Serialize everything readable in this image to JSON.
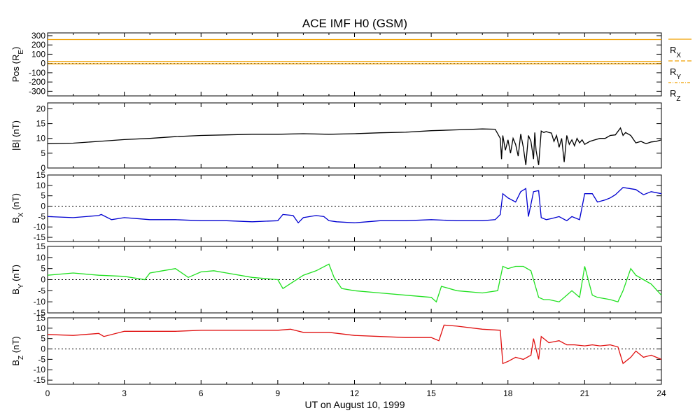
{
  "chart_data": {
    "type": "line",
    "title": "ACE IMF H0 (GSM)",
    "xlabel": "UT on August 10, 1999",
    "xlim": [
      0,
      24
    ],
    "xticks": [
      0,
      3,
      6,
      9,
      12,
      15,
      18,
      21,
      24
    ],
    "panels": [
      {
        "id": "pos",
        "ylabel_main": "Pos (R",
        "ylabel_sub": "E",
        "ylabel_end": ")",
        "ylim": [
          -350,
          330
        ],
        "yticks": [
          300,
          200,
          100,
          0,
          -100,
          -200,
          -300
        ],
        "zero_line": true,
        "legend": [
          {
            "main": "R",
            "sub": "X"
          },
          {
            "main": "R",
            "sub": "Y"
          },
          {
            "main": "R",
            "sub": "Z"
          }
        ],
        "series": [
          {
            "name": "R_X",
            "color": "#f0a000",
            "x": [
              0,
              24
            ],
            "y": [
              258,
              258
            ]
          },
          {
            "name": "R_Y",
            "color": "#f0a000",
            "x": [
              0,
              24
            ],
            "y": [
              22,
              22
            ]
          },
          {
            "name": "R_Z",
            "color": "#f0a000",
            "x": [
              0,
              24
            ],
            "y": [
              -4,
              -4
            ]
          }
        ]
      },
      {
        "id": "bt",
        "ylabel_main": "|B| (nT)",
        "ylabel_sub": "",
        "ylabel_end": "",
        "ylim": [
          0,
          22
        ],
        "yticks": [
          20,
          15,
          10,
          5,
          0
        ],
        "zero_line": false,
        "series": [
          {
            "name": "|B|",
            "color": "#000000",
            "x": [
              0,
              1,
              2,
              3,
              4,
              5,
              6,
              7,
              8,
              9,
              10,
              11,
              12,
              13,
              14,
              15,
              16,
              17,
              17.5,
              17.7,
              17.75,
              17.8,
              17.9,
              18.0,
              18.1,
              18.2,
              18.3,
              18.4,
              18.5,
              18.6,
              18.7,
              18.8,
              18.9,
              19.0,
              19.05,
              19.1,
              19.2,
              19.3,
              19.4,
              19.5,
              19.6,
              19.7,
              19.8,
              19.9,
              20.0,
              20.1,
              20.2,
              20.3,
              20.4,
              20.5,
              20.6,
              20.7,
              20.8,
              20.9,
              21.0,
              21.2,
              21.4,
              21.6,
              21.8,
              22.0,
              22.2,
              22.4,
              22.5,
              22.6,
              22.8,
              23.0,
              23.2,
              23.4,
              23.6,
              23.8,
              24.0
            ],
            "y": [
              8.2,
              8.4,
              9.0,
              9.6,
              10.0,
              10.6,
              11.0,
              11.2,
              11.4,
              11.4,
              11.6,
              11.4,
              11.6,
              11.9,
              12.1,
              12.6,
              12.9,
              13.2,
              13.1,
              10.0,
              3.0,
              11.0,
              6.0,
              9.5,
              5.0,
              10.0,
              8.0,
              4.0,
              11.5,
              7.0,
              1.0,
              11.0,
              9.0,
              3.0,
              12.0,
              6.0,
              1.0,
              12.5,
              12.0,
              12.3,
              12.0,
              11.8,
              9.0,
              11.0,
              7.0,
              10.0,
              2.0,
              11.0,
              8.0,
              9.5,
              7.5,
              10.0,
              8.5,
              9.5,
              8.0,
              9.0,
              9.5,
              10.0,
              10.0,
              11.0,
              11.2,
              13.5,
              11.0,
              12.0,
              11.0,
              8.5,
              9.0,
              8.2,
              8.8,
              9.0,
              9.5
            ]
          }
        ]
      },
      {
        "id": "bx",
        "ylabel_main": "B",
        "ylabel_sub": "X",
        "ylabel_end": " (nT)",
        "ylim": [
          -17,
          15
        ],
        "yticks": [
          15,
          10,
          5,
          0,
          -5,
          -10,
          -15
        ],
        "zero_line": true,
        "series": [
          {
            "name": "B_X",
            "color": "#0000d0",
            "x": [
              0,
              1,
              2,
              2.1,
              2.5,
              3,
              3.5,
              4,
              5,
              6,
              7,
              8,
              9,
              9.2,
              9.6,
              9.8,
              10,
              10.5,
              10.8,
              11,
              11.3,
              12,
              13,
              14,
              15,
              16,
              17,
              17.5,
              17.7,
              17.8,
              18.0,
              18.3,
              18.5,
              18.7,
              18.8,
              19.0,
              19.2,
              19.3,
              19.5,
              19.7,
              20.0,
              20.3,
              20.5,
              20.8,
              21.0,
              21.3,
              21.5,
              21.8,
              22.0,
              22.2,
              22.5,
              23.0,
              23.3,
              23.6,
              24.0
            ],
            "y": [
              -5,
              -5.5,
              -4.5,
              -4.0,
              -6.5,
              -5.5,
              -6.0,
              -6.5,
              -6.5,
              -7.0,
              -7.0,
              -7.5,
              -7.0,
              -4.0,
              -4.5,
              -8.0,
              -5.5,
              -4.5,
              -5.0,
              -7.0,
              -7.5,
              -8.0,
              -7.0,
              -7.0,
              -6.5,
              -7.0,
              -7.0,
              -6.5,
              -4.0,
              6.0,
              4.0,
              2.0,
              7.0,
              8.5,
              -5.0,
              7.0,
              7.5,
              -5.5,
              -6.5,
              -6.0,
              -5.0,
              -7.0,
              -5.0,
              -6.5,
              6.0,
              6.0,
              2.0,
              3.0,
              4.0,
              5.5,
              9.0,
              8.0,
              5.5,
              7.0,
              6.0
            ]
          }
        ]
      },
      {
        "id": "by",
        "ylabel_main": "B",
        "ylabel_sub": "Y",
        "ylabel_end": " (nT)",
        "ylim": [
          -15,
          15
        ],
        "yticks": [
          15,
          10,
          5,
          0,
          -5,
          -10,
          -15
        ],
        "zero_line": true,
        "series": [
          {
            "name": "B_Y",
            "color": "#20e020",
            "x": [
              0,
              1,
              2,
              3,
              3.8,
              4,
              4.5,
              5,
              5.5,
              6,
              6.5,
              7,
              8,
              9,
              9.2,
              9.6,
              10,
              10.5,
              11,
              11.2,
              11.5,
              12,
              13,
              14,
              15,
              15.2,
              15.4,
              16,
              17,
              17.6,
              17.8,
              18.0,
              18.3,
              18.6,
              18.9,
              19.2,
              19.4,
              19.6,
              20.0,
              20.3,
              20.5,
              20.8,
              21.0,
              21.3,
              21.5,
              22.0,
              22.3,
              22.5,
              22.8,
              23.0,
              23.3,
              23.6,
              24.0
            ],
            "y": [
              2,
              3,
              2,
              1.5,
              0,
              3,
              4,
              5,
              1,
              3.5,
              4,
              3,
              1,
              0,
              -4,
              -1,
              2,
              4,
              7,
              1,
              -4,
              -5,
              -6,
              -7,
              -8,
              -10,
              -3,
              -5,
              -6,
              -5,
              6,
              5,
              6,
              6,
              4,
              -8,
              -9,
              -9,
              -10,
              -7,
              -5,
              -8,
              6,
              -7,
              -8,
              -9,
              -10,
              -5,
              5,
              2,
              0,
              -2,
              -7
            ]
          }
        ]
      },
      {
        "id": "bz",
        "ylabel_main": "B",
        "ylabel_sub": "Z",
        "ylabel_end": " (nT)",
        "ylim": [
          -17,
          15
        ],
        "yticks": [
          15,
          10,
          5,
          0,
          -5,
          -10,
          -15
        ],
        "zero_line": true,
        "series": [
          {
            "name": "B_Z",
            "color": "#e01010",
            "x": [
              0,
              1,
              2,
              2.2,
              3,
              4,
              5,
              6,
              7,
              8,
              9,
              9.5,
              10,
              11,
              12,
              13,
              14,
              15,
              15.3,
              15.5,
              16,
              17,
              17.7,
              17.8,
              18.0,
              18.3,
              18.6,
              18.9,
              19.0,
              19.2,
              19.3,
              19.6,
              20.0,
              20.3,
              20.6,
              21.0,
              21.3,
              21.6,
              22.0,
              22.3,
              22.5,
              22.8,
              23.0,
              23.3,
              23.6,
              24.0
            ],
            "y": [
              7,
              6.5,
              7.5,
              6,
              8.5,
              8.5,
              8.5,
              9,
              9,
              9,
              9,
              9.5,
              8,
              8,
              6.5,
              6,
              5.5,
              5.5,
              4,
              11.5,
              11,
              9.5,
              9,
              -7,
              -6,
              -4,
              -5,
              -3,
              5,
              -5,
              6,
              3,
              4,
              2,
              2,
              1.5,
              2,
              1.5,
              2,
              1,
              -7,
              -4,
              -1,
              -4,
              -3,
              -5
            ]
          }
        ]
      }
    ]
  }
}
